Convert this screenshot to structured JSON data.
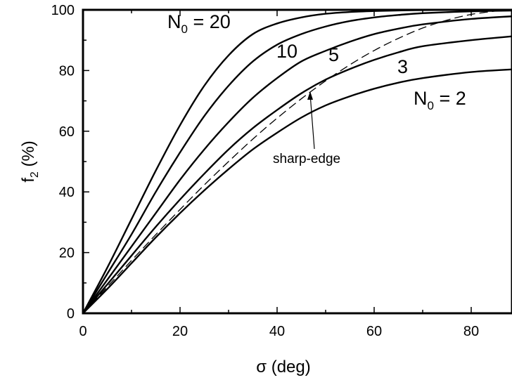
{
  "chart_data": {
    "type": "line",
    "title": "",
    "xlabel": {
      "symbol": "σ",
      "rest": " (deg)"
    },
    "ylabel": {
      "base": "f",
      "sub": "2",
      "rest": " (%)"
    },
    "xlim": [
      0,
      90
    ],
    "ylim": [
      0,
      100
    ],
    "xticks": [
      "0",
      "20",
      "40",
      "60",
      "80"
    ],
    "yticks": [
      "0",
      "20",
      "40",
      "60",
      "80",
      "100"
    ],
    "grid": false,
    "series": [
      {
        "name": "N0 = 20",
        "style": "solid",
        "x": [
          0,
          5,
          10,
          15,
          20,
          25,
          30,
          35,
          40,
          45,
          50,
          55,
          60,
          65,
          70,
          80,
          90
        ],
        "y": [
          0,
          15,
          31,
          47,
          62,
          75,
          85,
          92,
          95.5,
          97.5,
          98.7,
          99.3,
          99.6,
          99.8,
          99.9,
          100,
          100
        ]
      },
      {
        "name": "10",
        "style": "solid",
        "x": [
          0,
          5,
          10,
          15,
          20,
          25,
          30,
          35,
          40,
          45,
          50,
          55,
          60,
          65,
          70,
          80,
          90
        ],
        "y": [
          0,
          13,
          26,
          40,
          53,
          65,
          75,
          83,
          88.5,
          92,
          94.5,
          96.3,
          97.5,
          98.3,
          98.9,
          99.5,
          99.8
        ]
      },
      {
        "name": "5",
        "style": "solid",
        "x": [
          0,
          5,
          10,
          15,
          20,
          25,
          30,
          35,
          40,
          45,
          50,
          55,
          60,
          65,
          70,
          80,
          90
        ],
        "y": [
          0,
          11,
          22,
          33,
          44,
          54,
          63,
          71,
          77.5,
          83,
          86.5,
          89.5,
          92,
          93.8,
          95.2,
          97,
          98
        ]
      },
      {
        "name": "3",
        "style": "solid",
        "x": [
          0,
          5,
          10,
          15,
          20,
          25,
          30,
          35,
          40,
          45,
          50,
          55,
          60,
          65,
          70,
          80,
          90
        ],
        "y": [
          0,
          9.5,
          19,
          28.5,
          37.5,
          46,
          54,
          61,
          67,
          72.5,
          77,
          80.5,
          83.5,
          86,
          88,
          90,
          91.5
        ]
      },
      {
        "name": "N0 = 2",
        "style": "solid",
        "x": [
          0,
          5,
          10,
          15,
          20,
          25,
          30,
          35,
          40,
          45,
          50,
          55,
          60,
          65,
          70,
          80,
          90
        ],
        "y": [
          0,
          8,
          16.5,
          25,
          33,
          40.5,
          47.5,
          54,
          59.5,
          64.5,
          68.5,
          71.5,
          74,
          76,
          77.5,
          79.5,
          80.5
        ]
      },
      {
        "name": "sharp-edge",
        "style": "dashed",
        "x": [
          0,
          5,
          10,
          15,
          20,
          25,
          30,
          35,
          40,
          45,
          50,
          55,
          60,
          65,
          70,
          75,
          80,
          85,
          87
        ],
        "y": [
          0,
          8.7,
          17.4,
          25.9,
          34.2,
          42.3,
          50,
          57.4,
          64.3,
          70.7,
          76.6,
          81.9,
          86.6,
          90.6,
          94,
          96.6,
          98.5,
          99.6,
          100
        ]
      }
    ],
    "annotations": {
      "n20": {
        "prefix": "N",
        "sub": "0",
        "rest": " = 20"
      },
      "n10": "10",
      "n5": "5",
      "n3": "3",
      "n2": {
        "prefix": "N",
        "sub": "0",
        "rest": " = 2"
      },
      "sharp": "sharp-edge"
    }
  }
}
